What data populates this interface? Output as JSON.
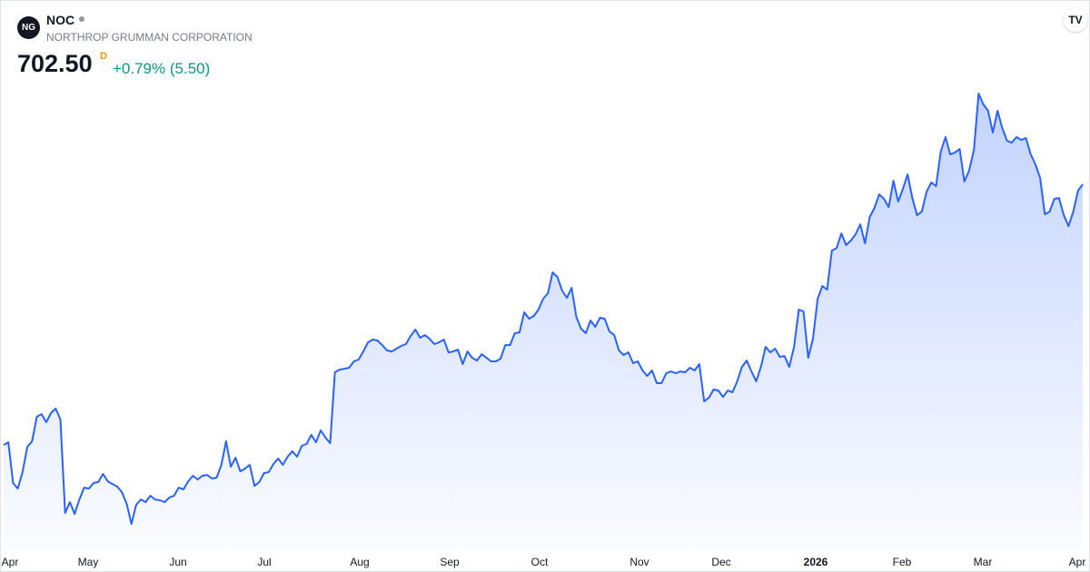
{
  "header": {
    "symbol": "NOC",
    "logo_text": "NG",
    "company": "NORTHROP GRUMMAN CORPORATION",
    "price": "702.50",
    "price_flag": "D",
    "change": "+0.79% (5.50)"
  },
  "chart_data": {
    "type": "area",
    "color": "#2962ff",
    "x_labels": [
      "Apr",
      "May",
      "Jun",
      "Jul",
      "Aug",
      "Sep",
      "Oct",
      "Nov",
      "Dec",
      "2026",
      "Feb",
      "Mar",
      "Apr"
    ],
    "values": [
      518.2,
      520.1,
      491.3,
      487.4,
      499.0,
      516.9,
      520.8,
      538.1,
      540.0,
      534.3,
      540.7,
      543.9,
      536.2,
      470.1,
      477.8,
      469.4,
      479.7,
      488.0,
      487.4,
      491.3,
      491.9,
      497.7,
      492.5,
      490.6,
      488.7,
      484.8,
      476.5,
      462.4,
      475.9,
      479.7,
      477.8,
      482.3,
      479.7,
      479.1,
      477.8,
      481.0,
      482.3,
      488.0,
      486.8,
      492.5,
      496.4,
      493.8,
      496.4,
      497.0,
      494.5,
      495.1,
      504.1,
      520.8,
      502.8,
      509.2,
      499.6,
      501.5,
      504.1,
      489.3,
      491.9,
      498.3,
      499.0,
      504.7,
      508.6,
      504.1,
      509.9,
      513.7,
      509.9,
      517.6,
      518.9,
      525.3,
      520.1,
      528.5,
      523.4,
      519.5,
      569.6,
      571.5,
      572.1,
      572.8,
      577.3,
      578.6,
      584.3,
      590.8,
      592.7,
      592.0,
      588.8,
      585.0,
      584.3,
      586.3,
      588.2,
      589.5,
      595.3,
      599.8,
      594.0,
      595.9,
      593.3,
      589.5,
      590.8,
      592.7,
      583.7,
      584.3,
      585.6,
      575.4,
      584.3,
      579.9,
      577.9,
      582.4,
      579.9,
      577.3,
      577.3,
      579.2,
      588.8,
      588.8,
      597.2,
      597.8,
      612.0,
      607.5,
      609.4,
      613.9,
      621.6,
      625.4,
      640.2,
      637.0,
      627.4,
      622.2,
      629.3,
      608.7,
      600.4,
      597.2,
      606.2,
      601.7,
      608.1,
      607.5,
      598.5,
      595.9,
      585.0,
      581.8,
      583.7,
      576.0,
      577.3,
      570.9,
      567.0,
      570.9,
      561.9,
      561.9,
      568.9,
      570.2,
      568.9,
      570.2,
      569.6,
      572.8,
      570.9,
      575.4,
      549.0,
      551.6,
      557.4,
      556.7,
      552.2,
      556.7,
      555.5,
      563.2,
      573.4,
      577.9,
      570.2,
      563.2,
      573.4,
      587.6,
      583.7,
      586.3,
      580.5,
      581.1,
      573.4,
      587.6,
      613.9,
      612.6,
      579.9,
      593.3,
      621.6,
      630.6,
      628.0,
      655.6,
      657.5,
      667.8,
      659.5,
      662.7,
      667.2,
      674.2,
      660.7,
      679.4,
      685.8,
      695.4,
      692.2,
      686.4,
      705.0,
      690.3,
      699.3,
      709.5,
      692.8,
      680.6,
      683.2,
      697.3,
      703.8,
      701.2,
      725.6,
      735.9,
      723.7,
      724.9,
      727.5,
      704.4,
      712.1,
      726.9,
      766.7,
      759.0,
      754.5,
      739.1,
      754.5,
      742.3,
      733.3,
      732.0,
      735.9,
      733.9,
      735.2,
      723.7,
      716.6,
      707.0,
      681.3,
      683.2,
      692.2,
      692.8,
      680.6,
      672.9,
      683.2,
      698.0,
      702.5
    ]
  }
}
